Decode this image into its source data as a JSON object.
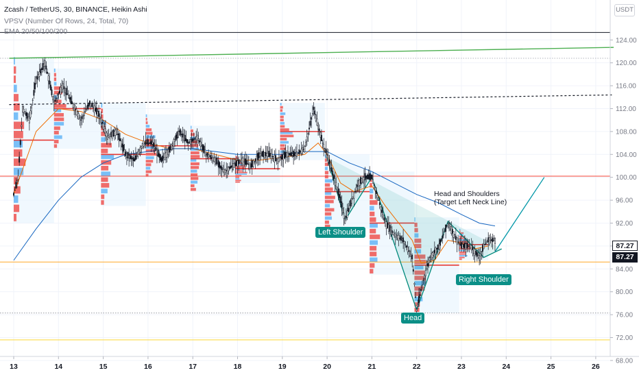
{
  "legend": {
    "symbol_line": "Zcash / TetherUS, 30, BINANCE, Heikin Ashi",
    "vpsv_line": "VPSV (Number Of Rows, 24, Total, 70)",
    "ema_line": "EMA 20/50/100/200"
  },
  "currency_button": "USDT",
  "price_tags": {
    "upper": "87.27",
    "lower": "87.27"
  },
  "annotations": {
    "left_shoulder": "Left Shoulder",
    "head": "Head",
    "right_shoulder": "Right Shoulder",
    "pattern_title": "Head and Shoulders",
    "pattern_subtitle": "(Target Left Neck Line)"
  },
  "colors": {
    "up": "#131722",
    "down": "#131722",
    "volume_down": "#ef5350",
    "volume_up": "#64b5f6",
    "ema_fast": "#ef6c00",
    "ema_slow": "#1565c0",
    "level_red": "#f44336",
    "level_orange": "#ffa726",
    "level_yellow": "#fdd835",
    "trend_green": "#4caf50",
    "pattern_fill": "#26a69a"
  },
  "chart_data": {
    "type": "candlestick",
    "title": "Zcash / TetherUS, 30, BINANCE, Heikin Ashi",
    "x_ticks": [
      "13",
      "14",
      "15",
      "16",
      "17",
      "18",
      "19",
      "20",
      "21",
      "22",
      "23",
      "24",
      "25",
      "26"
    ],
    "y_ticks": [
      "124.00",
      "120.00",
      "116.00",
      "112.00",
      "108.00",
      "104.00",
      "100.00",
      "96.00",
      "92.00",
      "88.00",
      "84.00",
      "80.00",
      "76.00",
      "72.00",
      "68.00"
    ],
    "ylim": [
      67,
      127
    ],
    "xlim": [
      12.9,
      26.4
    ],
    "horizontal_levels": [
      {
        "price": 100.2,
        "color": "#f44336",
        "style": "solid"
      },
      {
        "price": 85.2,
        "color": "#ffa726",
        "style": "solid"
      },
      {
        "price": 71.6,
        "color": "#fdd835",
        "style": "solid"
      },
      {
        "price": 76.3,
        "color": "#9598a1",
        "style": "dotted"
      },
      {
        "price": 120.8,
        "color": "#b2b5be",
        "style": "dotted"
      },
      {
        "price": 125.3,
        "color": "#131722",
        "style": "solid"
      }
    ],
    "trendlines": [
      {
        "from": [
          12.9,
          120.8
        ],
        "to": [
          26.4,
          122.7
        ],
        "color": "#4caf50",
        "style": "solid"
      },
      {
        "from": [
          12.9,
          112.7
        ],
        "to": [
          26.4,
          114.4
        ],
        "color": "#131722",
        "style": "dashed"
      }
    ],
    "price_path": [
      [
        13.0,
        97.0
      ],
      [
        13.1,
        100.0
      ],
      [
        13.2,
        112.0
      ],
      [
        13.35,
        110.0
      ],
      [
        13.5,
        117.0
      ],
      [
        13.7,
        120.0
      ],
      [
        13.9,
        113.0
      ],
      [
        14.1,
        116.0
      ],
      [
        14.3,
        113.0
      ],
      [
        14.5,
        110.0
      ],
      [
        14.7,
        113.0
      ],
      [
        14.9,
        111.0
      ],
      [
        15.1,
        107.0
      ],
      [
        15.3,
        108.0
      ],
      [
        15.5,
        104.0
      ],
      [
        15.7,
        103.0
      ],
      [
        15.9,
        106.0
      ],
      [
        16.1,
        106.0
      ],
      [
        16.3,
        103.0
      ],
      [
        16.5,
        105.0
      ],
      [
        16.7,
        108.0
      ],
      [
        16.9,
        106.0
      ],
      [
        17.1,
        107.0
      ],
      [
        17.3,
        104.0
      ],
      [
        17.5,
        103.0
      ],
      [
        17.7,
        101.0
      ],
      [
        17.9,
        102.0
      ],
      [
        18.1,
        103.0
      ],
      [
        18.3,
        102.0
      ],
      [
        18.5,
        104.0
      ],
      [
        18.7,
        104.0
      ],
      [
        18.9,
        103.0
      ],
      [
        19.1,
        104.0
      ],
      [
        19.3,
        104.0
      ],
      [
        19.5,
        105.0
      ],
      [
        19.7,
        112.0
      ],
      [
        19.9,
        106.0
      ],
      [
        20.0,
        104.0
      ],
      [
        20.15,
        100.0
      ],
      [
        20.3,
        96.0
      ],
      [
        20.4,
        92.5
      ],
      [
        20.55,
        96.0
      ],
      [
        20.7,
        99.0
      ],
      [
        20.85,
        100.0
      ],
      [
        21.0,
        100.0
      ],
      [
        21.15,
        96.0
      ],
      [
        21.3,
        92.0
      ],
      [
        21.5,
        90.0
      ],
      [
        21.7,
        89.0
      ],
      [
        21.9,
        86.0
      ],
      [
        22.0,
        76.8
      ],
      [
        22.15,
        82.0
      ],
      [
        22.3,
        86.0
      ],
      [
        22.5,
        88.0
      ],
      [
        22.7,
        92.0
      ],
      [
        22.9,
        89.0
      ],
      [
        23.0,
        88.0
      ],
      [
        23.2,
        88.0
      ],
      [
        23.4,
        86.0
      ],
      [
        23.5,
        88.0
      ],
      [
        23.6,
        89.0
      ],
      [
        23.75,
        89.0
      ]
    ],
    "ema_fast": [
      [
        13.0,
        97.0
      ],
      [
        13.5,
        108.0
      ],
      [
        14.0,
        112.0
      ],
      [
        14.5,
        111.5
      ],
      [
        15.0,
        110.0
      ],
      [
        15.5,
        107.5
      ],
      [
        16.0,
        106.0
      ],
      [
        16.5,
        105.0
      ],
      [
        17.0,
        105.0
      ],
      [
        17.5,
        104.0
      ],
      [
        18.0,
        103.0
      ],
      [
        18.5,
        103.0
      ],
      [
        19.0,
        103.5
      ],
      [
        19.5,
        104.0
      ],
      [
        19.8,
        106.0
      ],
      [
        20.0,
        104.0
      ],
      [
        20.3,
        99.0
      ],
      [
        20.6,
        97.5
      ],
      [
        21.0,
        98.5
      ],
      [
        21.3,
        95.0
      ],
      [
        21.6,
        92.0
      ],
      [
        21.9,
        89.0
      ],
      [
        22.1,
        85.0
      ],
      [
        22.4,
        85.5
      ],
      [
        22.7,
        89.0
      ],
      [
        23.0,
        88.5
      ],
      [
        23.3,
        87.5
      ],
      [
        23.6,
        88.0
      ]
    ],
    "ema_slow": [
      [
        13.0,
        85.5
      ],
      [
        13.5,
        91.0
      ],
      [
        14.0,
        96.0
      ],
      [
        14.5,
        100.0
      ],
      [
        15.0,
        102.5
      ],
      [
        15.5,
        104.0
      ],
      [
        16.0,
        104.5
      ],
      [
        16.5,
        105.0
      ],
      [
        17.0,
        105.0
      ],
      [
        17.5,
        104.5
      ],
      [
        18.0,
        104.0
      ],
      [
        18.5,
        104.0
      ],
      [
        19.0,
        104.0
      ],
      [
        19.5,
        104.5
      ],
      [
        20.0,
        104.5
      ],
      [
        20.5,
        102.5
      ],
      [
        21.0,
        101.0
      ],
      [
        21.5,
        99.0
      ],
      [
        22.0,
        97.0
      ],
      [
        22.5,
        95.5
      ],
      [
        23.0,
        93.5
      ],
      [
        23.4,
        92.0
      ],
      [
        23.75,
        91.5
      ]
    ],
    "pattern": {
      "name": "Head and Shoulders",
      "points": [
        [
          20.0,
          103.5
        ],
        [
          20.4,
          92.5
        ],
        [
          21.0,
          100.0
        ],
        [
          22.0,
          76.8
        ],
        [
          22.7,
          92.3
        ],
        [
          23.5,
          86.0
        ],
        [
          23.9,
          87.5
        ]
      ],
      "projection": [
        [
          23.75,
          87.0
        ],
        [
          24.85,
          100.0
        ]
      ]
    }
  }
}
